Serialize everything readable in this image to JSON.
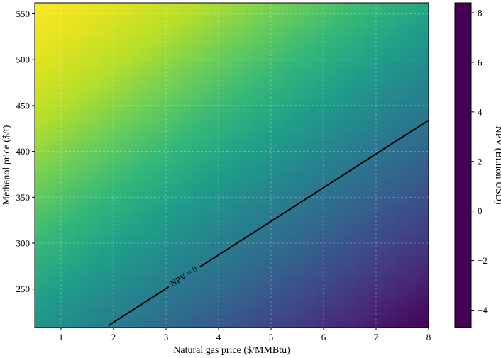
{
  "chart_data": {
    "type": "heatmap",
    "title": "",
    "xlabel": "Natural gas price ($/MMBtu)",
    "ylabel": "Methanol price ($/t)",
    "xlim": [
      0.5,
      8.0
    ],
    "ylim": [
      208,
      562
    ],
    "x_ticks": [
      1,
      2,
      3,
      4,
      5,
      6,
      7,
      8
    ],
    "y_ticks": [
      250,
      300,
      350,
      400,
      450,
      500,
      550
    ],
    "grid": true,
    "colormap": "viridis",
    "colorbar": {
      "label": "NPV (Billion USD)",
      "range": [
        -4.7,
        8.4
      ],
      "ticks": [
        -4,
        -2,
        0,
        2,
        4,
        6,
        8
      ]
    },
    "value_samples": [
      {
        "x": 0.5,
        "y": 562,
        "npv": 8.4
      },
      {
        "x": 8.0,
        "y": 208,
        "npv": -4.7
      },
      {
        "x": 0.5,
        "y": 208,
        "npv": 1.4
      },
      {
        "x": 8.0,
        "y": 562,
        "npv": 2.3
      }
    ],
    "contour": {
      "label": "NPV = 0",
      "level": 0,
      "points": [
        [
          1.9,
          210
        ],
        [
          8.0,
          434
        ]
      ]
    }
  }
}
